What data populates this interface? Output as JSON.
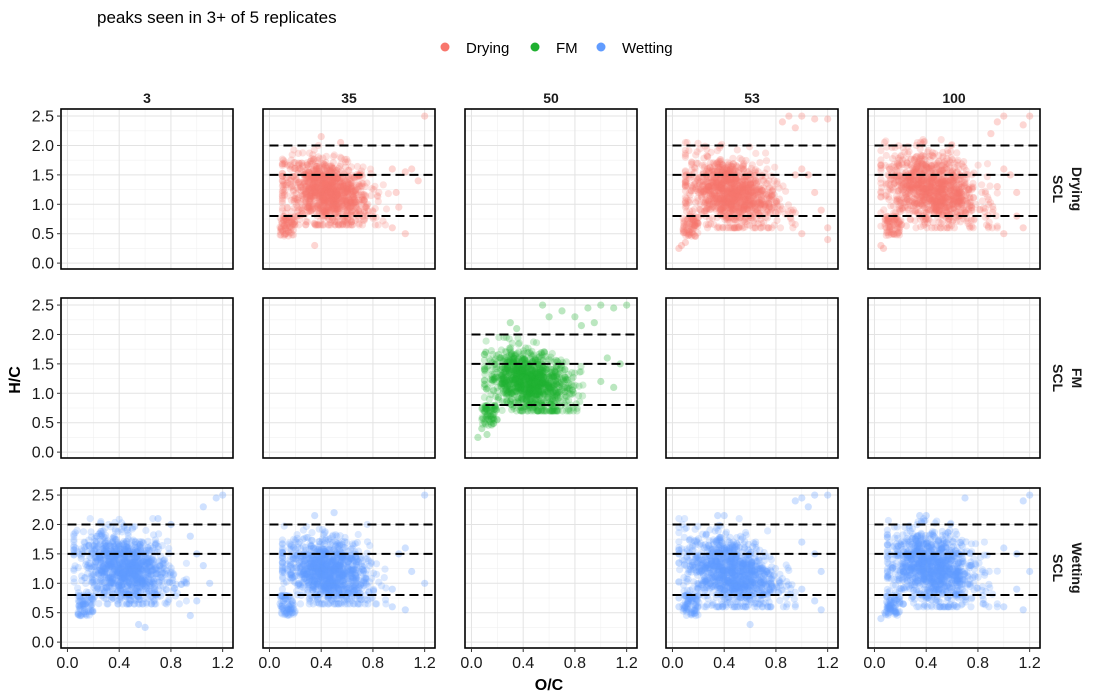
{
  "chart_data": {
    "type": "scatter",
    "subtitle": "peaks seen in 3+ of 5 replicates",
    "xlabel": "O/C",
    "ylabel": "H/C",
    "xlim": [
      -0.05,
      1.28
    ],
    "ylim": [
      -0.1,
      2.62
    ],
    "x_ticks": [
      0.0,
      0.4,
      0.8,
      1.2
    ],
    "x_tick_labels": [
      "0.0",
      "0.4",
      "0.8",
      "1.2"
    ],
    "y_ticks": [
      0.0,
      0.5,
      1.0,
      1.5,
      2.0,
      2.5
    ],
    "y_tick_labels": [
      "0.0",
      "0.5",
      "1.0",
      "1.5",
      "2.0",
      "2.5"
    ],
    "reference_lines_y": [
      0.8,
      1.5,
      2.0
    ],
    "grid": true,
    "legend": {
      "position": "top",
      "entries": [
        {
          "name": "Drying",
          "color": "#F8766D"
        },
        {
          "name": "FM",
          "color": "#1FB030"
        },
        {
          "name": "Wetting",
          "color": "#619CFF"
        }
      ]
    },
    "columns": [
      "3",
      "35",
      "50",
      "53",
      "100"
    ],
    "rows": [
      {
        "label1": "Drying",
        "label2": "SCL",
        "series": "Drying"
      },
      {
        "label1": "FM",
        "label2": "SCL",
        "series": "FM"
      },
      {
        "label1": "Wetting",
        "label2": "SCL",
        "series": "Wetting"
      }
    ],
    "panels": [
      {
        "row": "Drying",
        "column": "35",
        "series": "Drying",
        "cluster": {
          "x_range": [
            0.1,
            0.92
          ],
          "y_range": [
            0.65,
            2.0
          ],
          "center": [
            0.45,
            1.2
          ]
        },
        "outliers": [
          [
            0.95,
            1.6
          ],
          [
            1.05,
            1.55
          ],
          [
            1.1,
            1.6
          ],
          [
            1.05,
            0.5
          ],
          [
            0.95,
            0.6
          ],
          [
            1.2,
            2.5
          ],
          [
            0.98,
            1.2
          ],
          [
            0.4,
            2.15
          ],
          [
            0.55,
            2.05
          ],
          [
            1.15,
            1.4
          ],
          [
            1.0,
            0.95
          ],
          [
            0.35,
            0.3
          ]
        ]
      },
      {
        "row": "Drying",
        "column": "53",
        "series": "Drying",
        "cluster": {
          "x_range": [
            0.1,
            0.95
          ],
          "y_range": [
            0.6,
            2.05
          ],
          "center": [
            0.45,
            1.2
          ]
        },
        "outliers": [
          [
            0.85,
            2.4
          ],
          [
            0.9,
            2.5
          ],
          [
            1.0,
            2.5
          ],
          [
            1.1,
            2.45
          ],
          [
            1.2,
            2.45
          ],
          [
            0.95,
            2.3
          ],
          [
            1.0,
            1.6
          ],
          [
            1.05,
            1.5
          ],
          [
            1.1,
            1.2
          ],
          [
            1.15,
            0.9
          ],
          [
            1.2,
            0.6
          ],
          [
            1.0,
            0.5
          ],
          [
            1.2,
            0.4
          ],
          [
            0.95,
            1.5
          ],
          [
            0.07,
            0.3
          ],
          [
            0.05,
            0.25
          ],
          [
            0.1,
            0.35
          ]
        ]
      },
      {
        "row": "Drying",
        "column": "100",
        "series": "Drying",
        "cluster": {
          "x_range": [
            0.05,
            0.95
          ],
          "y_range": [
            0.6,
            2.1
          ],
          "center": [
            0.45,
            1.25
          ]
        },
        "outliers": [
          [
            0.95,
            2.4
          ],
          [
            1.0,
            2.5
          ],
          [
            1.2,
            2.5
          ],
          [
            1.15,
            2.35
          ],
          [
            0.9,
            2.2
          ],
          [
            1.0,
            1.6
          ],
          [
            1.05,
            1.5
          ],
          [
            1.1,
            1.2
          ],
          [
            1.1,
            0.8
          ],
          [
            1.0,
            0.5
          ],
          [
            1.15,
            0.6
          ],
          [
            0.05,
            0.3
          ],
          [
            0.07,
            0.25
          ],
          [
            0.95,
            1.3
          ]
        ]
      },
      {
        "row": "FM",
        "column": "50",
        "series": "FM",
        "cluster": {
          "x_range": [
            0.1,
            0.9
          ],
          "y_range": [
            0.7,
            1.95
          ],
          "center": [
            0.45,
            1.2
          ]
        },
        "outliers": [
          [
            0.7,
            2.4
          ],
          [
            0.9,
            2.45
          ],
          [
            1.0,
            2.5
          ],
          [
            1.1,
            2.45
          ],
          [
            1.2,
            2.5
          ],
          [
            0.8,
            2.3
          ],
          [
            0.95,
            2.2
          ],
          [
            0.6,
            2.3
          ],
          [
            0.55,
            2.5
          ],
          [
            0.85,
            2.15
          ],
          [
            1.05,
            1.6
          ],
          [
            1.15,
            1.5
          ],
          [
            1.0,
            1.2
          ],
          [
            1.1,
            1.1
          ],
          [
            0.05,
            0.25
          ],
          [
            0.08,
            0.4
          ],
          [
            0.12,
            0.3
          ],
          [
            0.3,
            2.2
          ],
          [
            0.35,
            2.1
          ]
        ]
      },
      {
        "row": "Wetting",
        "column": "3",
        "series": "Wetting",
        "cluster": {
          "x_range": [
            0.05,
            0.92
          ],
          "y_range": [
            0.65,
            2.1
          ],
          "center": [
            0.45,
            1.25
          ]
        },
        "outliers": [
          [
            1.15,
            2.45
          ],
          [
            1.2,
            2.5
          ],
          [
            1.05,
            2.3
          ],
          [
            0.95,
            1.8
          ],
          [
            1.0,
            1.5
          ],
          [
            1.05,
            1.3
          ],
          [
            1.1,
            1.0
          ],
          [
            1.0,
            0.7
          ],
          [
            0.95,
            0.45
          ],
          [
            0.55,
            0.3
          ],
          [
            0.6,
            0.25
          ],
          [
            0.8,
            2.0
          ],
          [
            0.7,
            2.1
          ]
        ]
      },
      {
        "row": "Wetting",
        "column": "35",
        "series": "Wetting",
        "cluster": {
          "x_range": [
            0.1,
            0.9
          ],
          "y_range": [
            0.65,
            2.0
          ],
          "center": [
            0.45,
            1.2
          ]
        },
        "outliers": [
          [
            1.2,
            2.5
          ],
          [
            1.05,
            1.6
          ],
          [
            1.0,
            1.5
          ],
          [
            1.1,
            1.2
          ],
          [
            1.2,
            1.0
          ],
          [
            0.95,
            0.9
          ],
          [
            0.5,
            2.2
          ],
          [
            0.35,
            2.15
          ],
          [
            0.95,
            0.6
          ],
          [
            1.05,
            0.55
          ]
        ]
      },
      {
        "row": "Wetting",
        "column": "53",
        "series": "Wetting",
        "cluster": {
          "x_range": [
            0.05,
            0.95
          ],
          "y_range": [
            0.6,
            2.1
          ],
          "center": [
            0.45,
            1.2
          ]
        },
        "outliers": [
          [
            0.95,
            2.4
          ],
          [
            1.0,
            2.45
          ],
          [
            1.1,
            2.5
          ],
          [
            1.2,
            2.5
          ],
          [
            1.05,
            2.3
          ],
          [
            1.0,
            1.7
          ],
          [
            1.1,
            1.5
          ],
          [
            1.15,
            1.2
          ],
          [
            1.0,
            0.9
          ],
          [
            1.1,
            0.7
          ],
          [
            1.15,
            0.55
          ],
          [
            0.6,
            0.3
          ],
          [
            0.05,
            0.6
          ],
          [
            0.05,
            0.75
          ],
          [
            0.35,
            2.15
          ],
          [
            0.4,
            2.15
          ]
        ]
      },
      {
        "row": "Wetting",
        "column": "100",
        "series": "Wetting",
        "cluster": {
          "x_range": [
            0.1,
            0.95
          ],
          "y_range": [
            0.6,
            2.1
          ],
          "center": [
            0.45,
            1.25
          ]
        },
        "outliers": [
          [
            0.7,
            2.45
          ],
          [
            1.2,
            2.5
          ],
          [
            1.15,
            2.4
          ],
          [
            1.0,
            1.6
          ],
          [
            1.1,
            1.5
          ],
          [
            1.2,
            1.2
          ],
          [
            1.1,
            0.9
          ],
          [
            1.0,
            0.6
          ],
          [
            1.15,
            0.55
          ],
          [
            0.35,
            2.15
          ],
          [
            0.4,
            2.15
          ],
          [
            0.05,
            0.4
          ],
          [
            0.08,
            0.5
          ]
        ]
      }
    ]
  }
}
